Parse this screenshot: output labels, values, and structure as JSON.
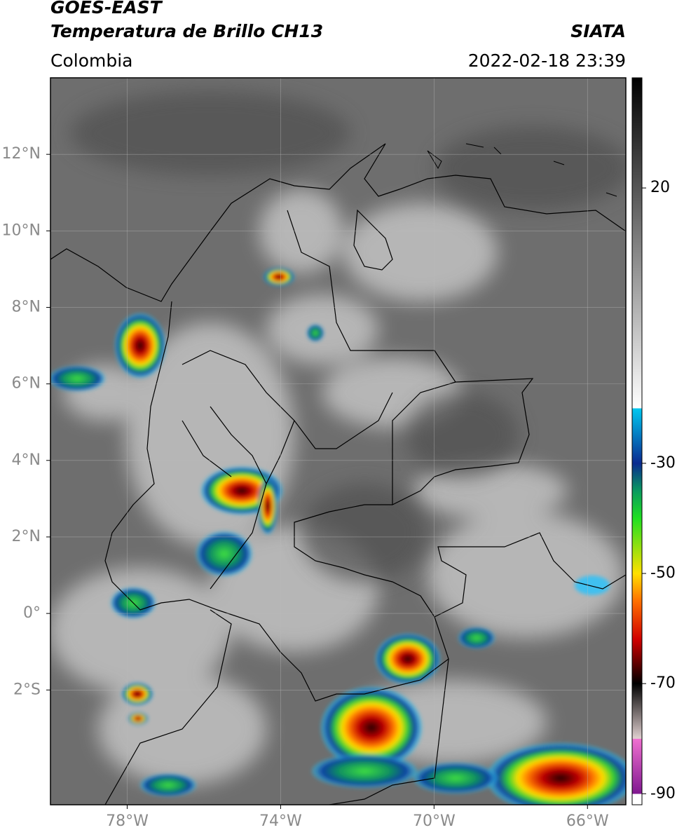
{
  "header": {
    "title": "GOES-EAST",
    "subtitle": "Temperatura de Brillo CH13",
    "source": "SIATA",
    "region": "Colombia",
    "datetime": "2022-02-18 23:39"
  },
  "map": {
    "xlim": [
      -80,
      -65
    ],
    "ylim": [
      -5,
      14
    ],
    "grid": true,
    "xticks": [
      {
        "value": -78,
        "label": "78°W"
      },
      {
        "value": -74,
        "label": "74°W"
      },
      {
        "value": -70,
        "label": "70°W"
      },
      {
        "value": -66,
        "label": "66°W"
      }
    ],
    "yticks": [
      {
        "value": 12,
        "label": "12°N"
      },
      {
        "value": 10,
        "label": "10°N"
      },
      {
        "value": 8,
        "label": "8°N"
      },
      {
        "value": 6,
        "label": "6°N"
      },
      {
        "value": 4,
        "label": "4°N"
      },
      {
        "value": 2,
        "label": "2°N"
      },
      {
        "value": 0,
        "label": "0°"
      },
      {
        "value": -2,
        "label": "2°S"
      }
    ]
  },
  "colorbar": {
    "clim": [
      -92,
      40
    ],
    "ticks": [
      20,
      -30,
      -50,
      -70,
      -90
    ],
    "stops": [
      {
        "value": 40,
        "color": "#000000"
      },
      {
        "value": -20,
        "color": "#ffffff"
      },
      {
        "value": -20.01,
        "color": "#00c8f0"
      },
      {
        "value": -30,
        "color": "#0a2a90"
      },
      {
        "value": -35,
        "color": "#0a9a60"
      },
      {
        "value": -40,
        "color": "#20e020"
      },
      {
        "value": -50,
        "color": "#ffe000"
      },
      {
        "value": -55,
        "color": "#ff7000"
      },
      {
        "value": -62,
        "color": "#d00000"
      },
      {
        "value": -70,
        "color": "#000000"
      },
      {
        "value": -80,
        "color": "#e0d0d0"
      },
      {
        "value": -80.01,
        "color": "#f070d0"
      },
      {
        "value": -90,
        "color": "#801890"
      },
      {
        "value": -90.01,
        "color": "#ffffff"
      }
    ]
  }
}
